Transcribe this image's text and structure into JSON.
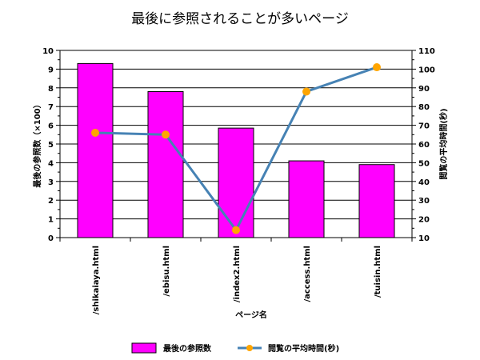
{
  "chart_data": {
    "type": "bar",
    "title": "最後に参照されることが多いページ",
    "xlabel": "ページ名",
    "ylabel": "最後の参照数（×100）",
    "y2label": "閲覧の平均時間(秒)",
    "categories": [
      "/shikaiaya.html",
      "/ebisu.html",
      "/index2.html",
      "/access.html",
      "/tuisin.html"
    ],
    "ylim": [
      0,
      10
    ],
    "y2lim": [
      10,
      110
    ],
    "yticks": [
      "0",
      "1",
      "2",
      "3",
      "4",
      "5",
      "6",
      "7",
      "8",
      "9",
      "10"
    ],
    "y2ticks": [
      "10",
      "20",
      "30",
      "40",
      "50",
      "60",
      "70",
      "80",
      "90",
      "100",
      "110"
    ],
    "grid": true,
    "legend_position": "bottom",
    "series": [
      {
        "name": "最後の参照数",
        "type": "bar",
        "axis": "left",
        "color": "#ff00ff",
        "values": [
          9.3,
          7.8,
          5.85,
          4.1,
          3.9
        ]
      },
      {
        "name": "閲覧の平均時間(秒)",
        "type": "line",
        "axis": "right",
        "color": "#4682b4",
        "marker_color": "#ffa500",
        "values": [
          66,
          65,
          14,
          88,
          101
        ]
      }
    ]
  }
}
